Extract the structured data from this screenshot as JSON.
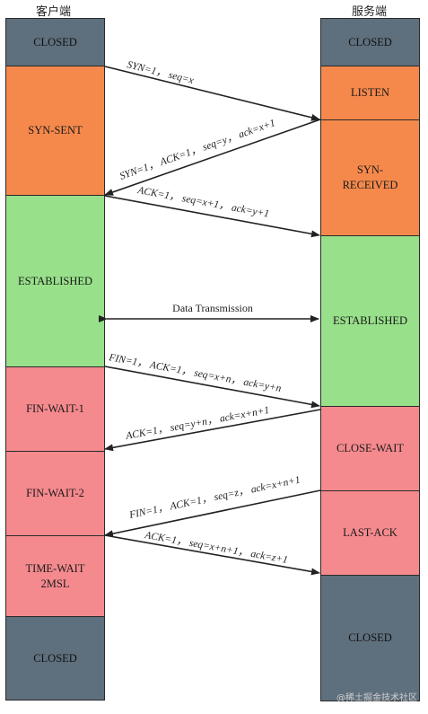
{
  "client": {
    "title": "客户端",
    "states": [
      {
        "label": "CLOSED"
      },
      {
        "label": "SYN-SENT"
      },
      {
        "label": "ESTABLISHED"
      },
      {
        "label": "FIN-WAIT-1"
      },
      {
        "label": "FIN-WAIT-2"
      },
      {
        "label": "TIME-WAIT\n2MSL"
      },
      {
        "label": "CLOSED"
      }
    ]
  },
  "server": {
    "title": "服务端",
    "states": [
      {
        "label": "CLOSED"
      },
      {
        "label": "LISTEN"
      },
      {
        "label": "SYN-\nRECEIVED"
      },
      {
        "label": "ESTABLISHED"
      },
      {
        "label": "CLOSE-WAIT"
      },
      {
        "label": "LAST-ACK"
      },
      {
        "label": "CLOSED"
      }
    ]
  },
  "messages": [
    {
      "label": "SYN=1， seq=x"
    },
    {
      "label": "SYN=1， ACK=1， seq=y， ack=x+1"
    },
    {
      "label": "ACK=1， seq=x+1， ack=y+1"
    },
    {
      "label": "Data Transmission"
    },
    {
      "label": "FIN=1， ACK=1， seq=x+n， ack=y+n"
    },
    {
      "label": "ACK=1， seq=y+n， ack=x+n+1"
    },
    {
      "label": "FIN=1， ACK=1， seq=z， ack=x+n+1"
    },
    {
      "label": "ACK=1， seq=x+n+1， ack=z+1"
    }
  ],
  "colors": {
    "closed": "#5e6f7d",
    "orange": "#f5894b",
    "green": "#98e08a",
    "red": "#f58a8e"
  },
  "watermark": "@稀土掘金技术社区"
}
